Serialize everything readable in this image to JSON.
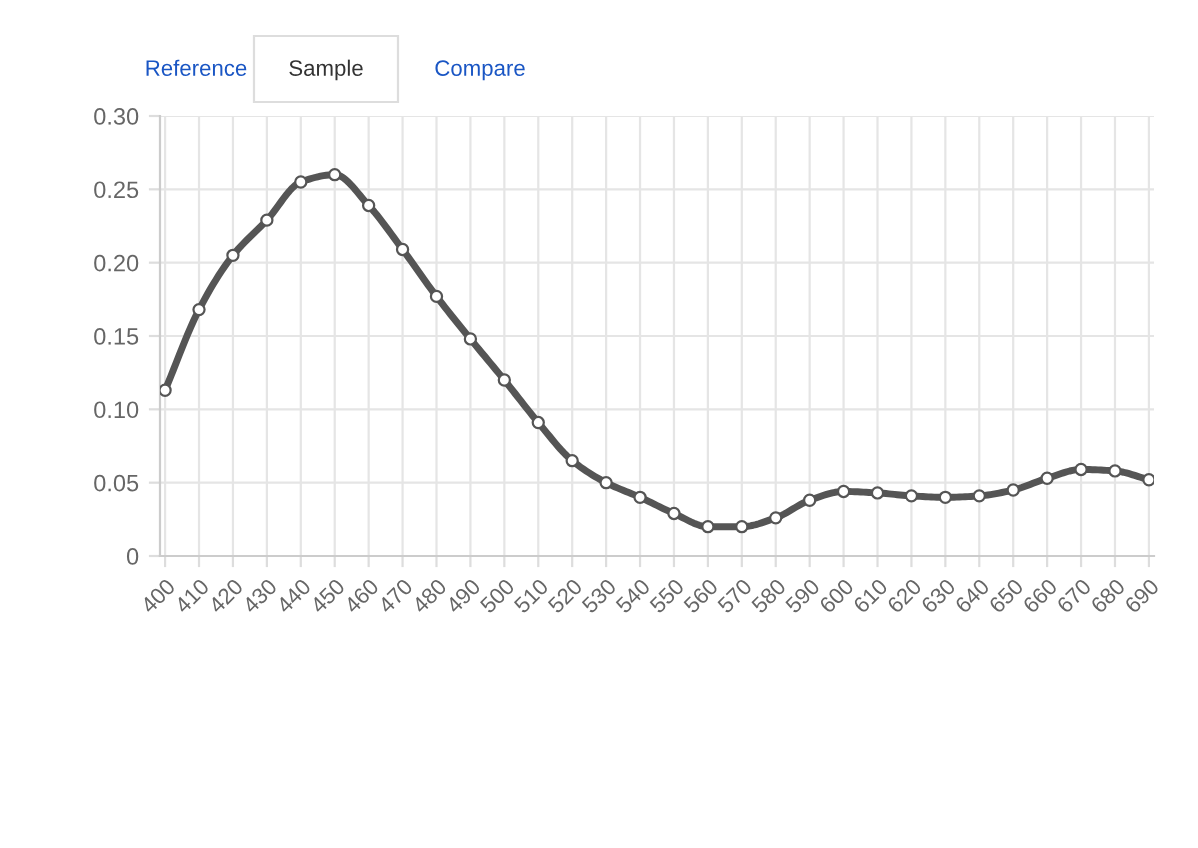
{
  "chart_data": {
    "type": "line",
    "annotations": [
      "Reference",
      "Sample",
      "Compare"
    ],
    "categories": [
      "400",
      "410",
      "420",
      "430",
      "440",
      "450",
      "460",
      "470",
      "480",
      "490",
      "500",
      "510",
      "520",
      "530",
      "540",
      "550",
      "560",
      "570",
      "580",
      "590",
      "600",
      "610",
      "620",
      "630",
      "640",
      "650",
      "660",
      "670",
      "680",
      "690"
    ],
    "series": [
      {
        "color": "#555555",
        "values": [
          0.113,
          0.168,
          0.205,
          0.229,
          0.255,
          0.26,
          0.239,
          0.209,
          0.177,
          0.148,
          0.12,
          0.091,
          0.065,
          0.05,
          0.04,
          0.029,
          0.02,
          0.02,
          0.026,
          0.038,
          0.044,
          0.043,
          0.041,
          0.04,
          0.041,
          0.045,
          0.053,
          0.059,
          0.058,
          0.052
        ]
      }
    ],
    "ylim": [
      0,
      0.3
    ],
    "yticks": [
      0,
      0.05,
      {
        "value": 0.1,
        "label": "0.10"
      },
      0.15,
      {
        "value": 0.2,
        "label": "0.20"
      },
      0.25,
      {
        "value": 0.3,
        "label": "0.30"
      }
    ],
    "grid": true,
    "marker": "circle",
    "line_style": "solid",
    "legend": false
  }
}
